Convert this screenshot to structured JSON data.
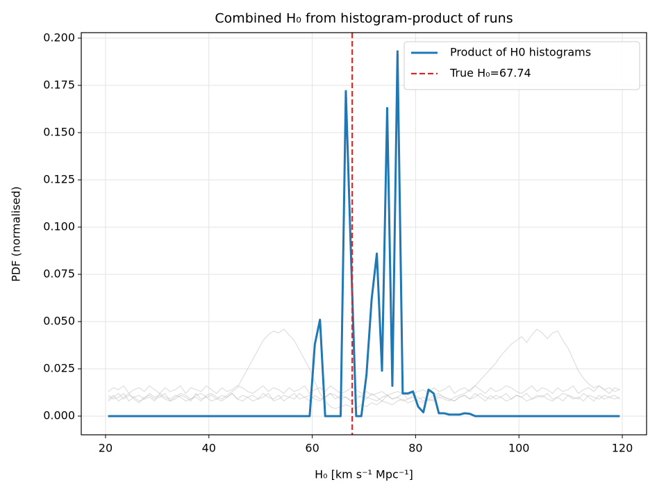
{
  "chart_data": {
    "type": "line",
    "title": "Combined H₀ from histogram-product of runs",
    "xlabel": "H₀ [km s⁻¹ Mpc⁻¹]",
    "ylabel": "PDF (normalised)",
    "x": [
      20.5,
      21.5,
      22.5,
      23.5,
      24.5,
      25.5,
      26.5,
      27.5,
      28.5,
      29.5,
      30.5,
      31.5,
      32.5,
      33.5,
      34.5,
      35.5,
      36.5,
      37.5,
      38.5,
      39.5,
      40.5,
      41.5,
      42.5,
      43.5,
      44.5,
      45.5,
      46.5,
      47.5,
      48.5,
      49.5,
      50.5,
      51.5,
      52.5,
      53.5,
      54.5,
      55.5,
      56.5,
      57.5,
      58.5,
      59.5,
      60.5,
      61.5,
      62.5,
      63.5,
      64.5,
      65.5,
      66.5,
      67.5,
      68.5,
      69.5,
      70.5,
      71.5,
      72.5,
      73.5,
      74.5,
      75.5,
      76.5,
      77.5,
      78.5,
      79.5,
      80.5,
      81.5,
      82.5,
      83.5,
      84.5,
      85.5,
      86.5,
      87.5,
      88.5,
      89.5,
      90.5,
      91.5,
      92.5,
      93.5,
      94.5,
      95.5,
      96.5,
      97.5,
      98.5,
      99.5,
      100.5,
      101.5,
      102.5,
      103.5,
      104.5,
      105.5,
      106.5,
      107.5,
      108.5,
      109.5,
      110.5,
      111.5,
      112.5,
      113.5,
      114.5,
      115.5,
      116.5,
      117.5,
      118.5,
      119.5
    ],
    "series": [
      {
        "name": "Product of H0 histograms",
        "color": "#1f77b4",
        "values": [
          0,
          0,
          0,
          0,
          0,
          0,
          0,
          0,
          0,
          0,
          0,
          0,
          0,
          0,
          0,
          0,
          0,
          0,
          0,
          0,
          0,
          0,
          0,
          0,
          0,
          0,
          0,
          0,
          0,
          0,
          0,
          0,
          0,
          0,
          0,
          0,
          0,
          0,
          0,
          0,
          0.038,
          0.051,
          0,
          0,
          0,
          0,
          0.172,
          0.085,
          0,
          0,
          0.022,
          0.062,
          0.086,
          0.024,
          0.163,
          0.016,
          0.193,
          0.012,
          0.012,
          0.013,
          0.005,
          0.002,
          0.014,
          0.012,
          0.0015,
          0.0015,
          0.0008,
          0.0008,
          0.0008,
          0.0015,
          0.0012,
          0,
          0,
          0,
          0,
          0,
          0,
          0,
          0,
          0,
          0,
          0,
          0,
          0,
          0,
          0,
          0,
          0,
          0,
          0,
          0,
          0,
          0,
          0,
          0,
          0,
          0,
          0,
          0,
          0
        ]
      }
    ],
    "background_series": [
      {
        "color": "#bbbbbb",
        "values": [
          0.009,
          0.011,
          0.008,
          0.01,
          0.012,
          0.009,
          0.007,
          0.01,
          0.011,
          0.009,
          0.01,
          0.012,
          0.008,
          0.009,
          0.011,
          0.01,
          0.008,
          0.012,
          0.009,
          0.01,
          0.011,
          0.009,
          0.008,
          0.01,
          0.012,
          0.009,
          0.011,
          0.01,
          0.008,
          0.009,
          0.012,
          0.01,
          0.009,
          0.011,
          0.008,
          0.01,
          0.012,
          0.009,
          0.01,
          0.011,
          0.009,
          0.008,
          0.01,
          0.012,
          0.011,
          0.009,
          0.01,
          0.008,
          0.011,
          0.01,
          0.009,
          0.012,
          0.01,
          0.008,
          0.011,
          0.009,
          0.01,
          0.012,
          0.009,
          0.011,
          0.01,
          0.008,
          0.009,
          0.011,
          0.012,
          0.01,
          0.009,
          0.008,
          0.01,
          0.011,
          0.009,
          0.012,
          0.01,
          0.008,
          0.011,
          0.009,
          0.01,
          0.012,
          0.009,
          0.011,
          0.01,
          0.008,
          0.009,
          0.011,
          0.01,
          0.012,
          0.009,
          0.01,
          0.008,
          0.011,
          0.01,
          0.009,
          0.012,
          0.01,
          0.008,
          0.011,
          0.009,
          0.01,
          0.011,
          0.009
        ]
      },
      {
        "color": "#bbbbbb",
        "values": [
          0.008,
          0.01,
          0.012,
          0.009,
          0.011,
          0.01,
          0.008,
          0.009,
          0.012,
          0.01,
          0.011,
          0.009,
          0.008,
          0.01,
          0.012,
          0.011,
          0.009,
          0.01,
          0.008,
          0.011,
          0.012,
          0.01,
          0.009,
          0.011,
          0.013,
          0.015,
          0.02,
          0.025,
          0.03,
          0.035,
          0.04,
          0.043,
          0.045,
          0.044,
          0.046,
          0.043,
          0.04,
          0.035,
          0.03,
          0.025,
          0.018,
          0.012,
          0.008,
          0.005,
          0.004,
          0.005,
          0.006,
          0.005,
          0.004,
          0.006,
          0.005,
          0.007,
          0.006,
          0.008,
          0.007,
          0.006,
          0.008,
          0.009,
          0.007,
          0.008,
          0.009,
          0.01,
          0.008,
          0.009,
          0.011,
          0.01,
          0.009,
          0.008,
          0.01,
          0.011,
          0.009,
          0.01,
          0.012,
          0.01,
          0.009,
          0.011,
          0.01,
          0.008,
          0.009,
          0.011,
          0.01,
          0.012,
          0.009,
          0.01,
          0.011,
          0.009,
          0.008,
          0.01,
          0.012,
          0.011,
          0.009,
          0.01,
          0.008,
          0.011,
          0.01,
          0.009,
          0.011,
          0.01,
          0.009,
          0.01
        ]
      },
      {
        "color": "#bbbbbb",
        "values": [
          0.011,
          0.009,
          0.01,
          0.012,
          0.008,
          0.01,
          0.011,
          0.009,
          0.01,
          0.008,
          0.012,
          0.01,
          0.009,
          0.011,
          0.01,
          0.008,
          0.009,
          0.011,
          0.012,
          0.01,
          0.008,
          0.009,
          0.011,
          0.01,
          0.012,
          0.009,
          0.008,
          0.01,
          0.011,
          0.009,
          0.01,
          0.012,
          0.008,
          0.009,
          0.011,
          0.01,
          0.009,
          0.012,
          0.01,
          0.008,
          0.011,
          0.009,
          0.01,
          0.012,
          0.009,
          0.011,
          0.01,
          0.008,
          0.009,
          0.011,
          0.01,
          0.009,
          0.008,
          0.01,
          0.011,
          0.009,
          0.01,
          0.008,
          0.009,
          0.01,
          0.008,
          0.007,
          0.009,
          0.008,
          0.01,
          0.009,
          0.008,
          0.01,
          0.011,
          0.012,
          0.014,
          0.016,
          0.019,
          0.022,
          0.025,
          0.028,
          0.032,
          0.035,
          0.038,
          0.04,
          0.042,
          0.039,
          0.043,
          0.046,
          0.044,
          0.041,
          0.044,
          0.045,
          0.04,
          0.036,
          0.03,
          0.024,
          0.02,
          0.017,
          0.015,
          0.016,
          0.014,
          0.015,
          0.013,
          0.014
        ]
      },
      {
        "color": "#bbbbbb",
        "values": [
          0.013,
          0.015,
          0.014,
          0.016,
          0.012,
          0.014,
          0.015,
          0.013,
          0.016,
          0.014,
          0.012,
          0.015,
          0.013,
          0.014,
          0.016,
          0.012,
          0.015,
          0.014,
          0.013,
          0.016,
          0.014,
          0.012,
          0.015,
          0.013,
          0.014,
          0.016,
          0.015,
          0.013,
          0.012,
          0.014,
          0.016,
          0.013,
          0.015,
          0.014,
          0.012,
          0.015,
          0.013,
          0.014,
          0.016,
          0.012,
          0.014,
          0.015,
          0.013,
          0.016,
          0.014,
          0.012,
          0.013,
          0.015,
          0.014,
          0.012,
          0.013,
          0.011,
          0.012,
          0.013,
          0.011,
          0.012,
          0.013,
          0.012,
          0.011,
          0.012,
          0.013,
          0.014,
          0.012,
          0.015,
          0.013,
          0.014,
          0.016,
          0.012,
          0.014,
          0.015,
          0.013,
          0.016,
          0.014,
          0.012,
          0.015,
          0.013,
          0.014,
          0.016,
          0.015,
          0.013,
          0.012,
          0.014,
          0.016,
          0.013,
          0.015,
          0.014,
          0.012,
          0.015,
          0.013,
          0.014,
          0.016,
          0.012,
          0.014,
          0.015,
          0.013,
          0.016,
          0.014,
          0.012,
          0.015,
          0.014
        ]
      }
    ],
    "true_h0": 67.74,
    "true_h0_color": "#d62728",
    "true_h0_label": "True H₀=67.74",
    "xlim": [
      15.3,
      124.7
    ],
    "xticks": [
      20,
      40,
      60,
      80,
      100,
      120
    ],
    "ylim": [
      -0.0099,
      0.2029
    ],
    "yticks": [
      {
        "value": 0,
        "label": "0.000"
      },
      {
        "value": 0.025,
        "label": "0.025"
      },
      {
        "value": 0.05,
        "label": "0.050"
      },
      {
        "value": 0.075,
        "label": "0.075"
      },
      {
        "value": 0.1,
        "label": "0.100"
      },
      {
        "value": 0.125,
        "label": "0.125"
      },
      {
        "value": 0.15,
        "label": "0.150"
      },
      {
        "value": 0.175,
        "label": "0.175"
      },
      {
        "value": 0.2,
        "label": "0.200"
      }
    ],
    "grid": true,
    "legend": "upper right"
  }
}
